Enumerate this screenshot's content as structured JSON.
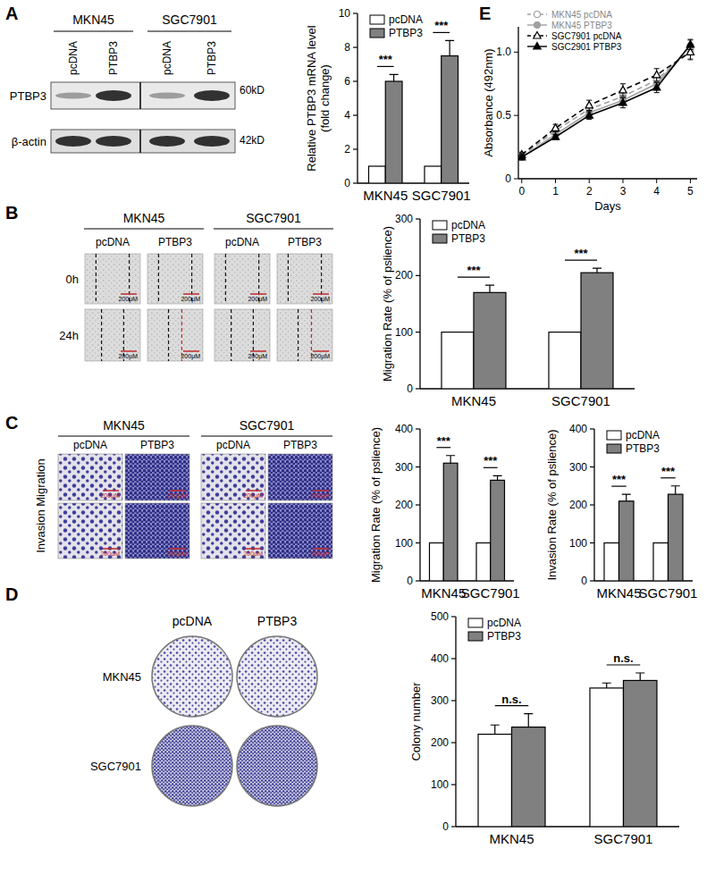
{
  "chart_data": [
    {
      "type": "bar",
      "y_label": "Relative PTBP3 mRNA level\n(fold change)",
      "categories": [
        "MKN45",
        "SGC7901"
      ],
      "series": [
        {
          "name": "pcDNA",
          "color": "#ffffff",
          "values": [
            1,
            1
          ]
        },
        {
          "name": "PTBP3",
          "color": "#808080",
          "values": [
            6.0,
            7.5
          ],
          "errors": [
            0.4,
            0.9
          ]
        }
      ],
      "ylim": [
        0,
        10
      ],
      "yticks": [
        0,
        2,
        4,
        6,
        8,
        10
      ],
      "legend": "upper left",
      "annotations": [
        "***",
        "***"
      ]
    },
    {
      "type": "bar",
      "y_label": "Migration Rate (% of pslience)",
      "categories": [
        "MKN45",
        "SGC7901"
      ],
      "series": [
        {
          "name": "pcDNA",
          "color": "#ffffff",
          "values": [
            100,
            100
          ]
        },
        {
          "name": "PTBP3",
          "color": "#808080",
          "values": [
            170,
            205
          ],
          "errors": [
            13,
            8
          ]
        }
      ],
      "ylim": [
        0,
        300
      ],
      "yticks": [
        0,
        100,
        200,
        300
      ],
      "legend": "upper left",
      "annotations": [
        "***",
        "***"
      ]
    },
    {
      "type": "bar",
      "y_label": "Migration Rate (% of pslience)",
      "categories": [
        "MKN45",
        "SGC7901"
      ],
      "series": [
        {
          "color": "#ffffff",
          "values": [
            100,
            100
          ]
        },
        {
          "color": "#808080",
          "values": [
            310,
            265
          ],
          "errors": [
            20,
            12
          ]
        }
      ],
      "ylim": [
        0,
        400
      ],
      "yticks": [
        0,
        100,
        200,
        300,
        400
      ],
      "annotations": [
        "***",
        "***"
      ]
    },
    {
      "type": "bar",
      "y_label": "Invasion Rate (% of pslience)",
      "categories": [
        "MKN45",
        "SGC7901"
      ],
      "series": [
        {
          "name": "pcDNA",
          "color": "#ffffff",
          "values": [
            100,
            100
          ]
        },
        {
          "name": "PTBP3",
          "color": "#808080",
          "values": [
            210,
            228
          ],
          "errors": [
            18,
            22
          ]
        }
      ],
      "ylim": [
        0,
        400
      ],
      "yticks": [
        0,
        100,
        200,
        300,
        400
      ],
      "legend": "upper left",
      "annotations": [
        "***",
        "***"
      ]
    },
    {
      "type": "bar",
      "y_label": "Colony number",
      "categories": [
        "MKN45",
        "SGC7901"
      ],
      "series": [
        {
          "name": "pcDNA",
          "color": "#ffffff",
          "values": [
            220,
            330
          ],
          "errors": [
            22,
            12
          ]
        },
        {
          "name": "PTBP3",
          "color": "#808080",
          "values": [
            237,
            348
          ],
          "errors": [
            32,
            18
          ]
        }
      ],
      "ylim": [
        0,
        500
      ],
      "yticks": [
        0,
        100,
        200,
        300,
        400,
        500
      ],
      "legend": "upper left",
      "annotations": [
        "n.s.",
        "n.s."
      ]
    },
    {
      "type": "line",
      "x_label": "Days",
      "y_label": "Absorbance (492nm)",
      "x": [
        0,
        1,
        2,
        3,
        4,
        5
      ],
      "xlim": [
        -0.1,
        5.2
      ],
      "xticks": [
        0,
        1,
        2,
        3,
        4,
        5
      ],
      "ylim": [
        0,
        1.2
      ],
      "yticks": [
        0,
        0.5,
        {
          "value": 1,
          "label": "1.0"
        }
      ],
      "legend": "upper left",
      "series": [
        {
          "name": "MKN45 pcDNA",
          "color": "#a0a0a0",
          "marker": "circle_open",
          "line_style": "dashed",
          "values": [
            0.18,
            0.38,
            0.55,
            0.65,
            0.78,
            1.02
          ],
          "errors": [
            0.02,
            0.03,
            0.04,
            0.06,
            0.05,
            0.07
          ]
        },
        {
          "name": "MKN45 PTBP3",
          "color": "#a0a0a0",
          "marker": "circle",
          "line_style": "solid",
          "values": [
            0.17,
            0.35,
            0.52,
            0.62,
            0.75,
            1.05
          ],
          "errors": [
            0.02,
            0.03,
            0.04,
            0.04,
            0.05,
            0.05
          ]
        },
        {
          "name": "SGC7901 pcDNA",
          "color": "#000000",
          "marker": "triangle_open",
          "line_style": "dashed",
          "values": [
            0.19,
            0.4,
            0.58,
            0.7,
            0.82,
            1.0
          ],
          "errors": [
            0.02,
            0.03,
            0.04,
            0.05,
            0.05,
            0.06
          ]
        },
        {
          "name": "SGC2901 PTBP3",
          "color": "#000000",
          "marker": "triangle",
          "line_style": "solid",
          "values": [
            0.17,
            0.33,
            0.5,
            0.6,
            0.72,
            1.06
          ],
          "errors": [
            0.02,
            0.02,
            0.03,
            0.04,
            0.04,
            0.04
          ]
        }
      ]
    }
  ],
  "figure": {
    "panel_labels": [
      "A",
      "B",
      "C",
      "D",
      "E"
    ],
    "blot": {
      "cell_lines": [
        "MKN45",
        "SGC7901"
      ],
      "conditions": [
        "pcDNA",
        "PTBP3"
      ],
      "rows": [
        "PTBP3",
        "β-actin"
      ],
      "sizes": [
        "60kD",
        "42kD"
      ]
    },
    "scratch": {
      "cell_lines": [
        "MKN45",
        "SGC7901"
      ],
      "conditions": [
        "pcDNA",
        "PTBP3"
      ],
      "rows": [
        "0h",
        "24h"
      ],
      "scale_label": "200μM"
    },
    "transwell": {
      "cell_lines": [
        "MKN45",
        "SGC7901"
      ],
      "conditions": [
        "pcDNA",
        "PTBP3"
      ],
      "row_label": "Invasion Migration",
      "scale_label": "200μM"
    },
    "colony": {
      "conditions": [
        "pcDNA",
        "PTBP3"
      ],
      "cell_lines": [
        "MKN45",
        "SGC7901"
      ]
    }
  }
}
